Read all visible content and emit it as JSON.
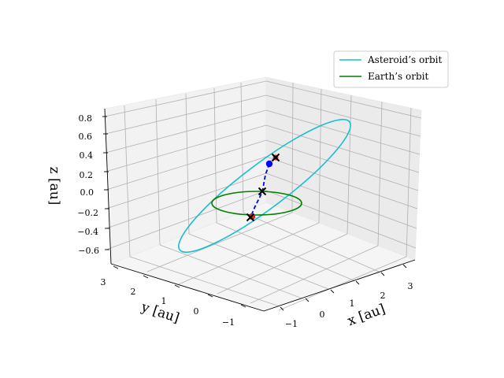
{
  "chart_data": {
    "type": "line",
    "projection": "3d",
    "title": "",
    "xlabel": "x [au]",
    "ylabel": "y [au]",
    "zlabel": "z [au]",
    "xlim": [
      -1.5,
      3.6
    ],
    "ylim": [
      -1.5,
      3.3
    ],
    "zlim": [
      -0.7,
      0.85
    ],
    "x_ticks": [
      "−1",
      "0",
      "1",
      "2",
      "3"
    ],
    "y_ticks": [
      "−1",
      "0",
      "1",
      "2",
      "3"
    ],
    "z_ticks": [
      "−0.6",
      "−0.4",
      "−0.2",
      "0.0",
      "0.2",
      "0.4",
      "0.6",
      "0.8"
    ],
    "grid": true,
    "legend_position": "top-right",
    "series": [
      {
        "name": "Asteroid’s orbit",
        "color": "#17becf"
      },
      {
        "name": "Earth’s orbit",
        "color": "#008000"
      }
    ],
    "markers": [
      {
        "kind": "x",
        "color": "#000000"
      },
      {
        "kind": "x",
        "color": "#000000"
      },
      {
        "kind": "x",
        "color": "#000000"
      },
      {
        "kind": "dot",
        "color": "#0000ff"
      },
      {
        "kind": "dot",
        "color": "#d62728"
      },
      {
        "kind": "dashed-line",
        "color": "#0000ff"
      }
    ]
  }
}
